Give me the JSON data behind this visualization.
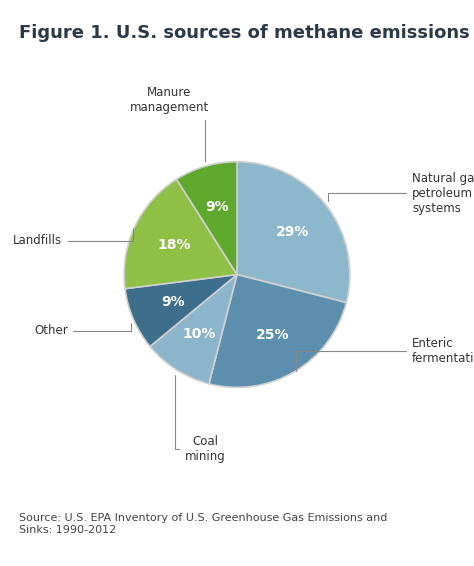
{
  "title": "Figure 1. U.S. sources of methane emissions",
  "source_text": "Source: U.S. EPA Inventory of U.S. Greenhouse Gas Emissions and\nSinks: 1990-2012",
  "slices": [
    {
      "label": "Natural gas and\npetroleum\nsystems",
      "value": 29,
      "color": "#8db8cc",
      "pct_label": "29%"
    },
    {
      "label": "Enteric\nfermentation",
      "value": 25,
      "color": "#5b8fad",
      "pct_label": "25%"
    },
    {
      "label": "Coal\nmining",
      "value": 10,
      "color": "#8ab5cb",
      "pct_label": "10%"
    },
    {
      "label": "Other",
      "value": 9,
      "color": "#3d6e8c",
      "pct_label": "9%"
    },
    {
      "label": "Landfills",
      "value": 18,
      "color": "#8dc044",
      "pct_label": "18%"
    },
    {
      "label": "Manure\nmanagement",
      "value": 9,
      "color": "#5ea82e",
      "pct_label": "9%"
    }
  ],
  "wedge_edge_color": "#d0d0d0",
  "wedge_linewidth": 1.2,
  "background_color": "#ffffff",
  "title_fontsize": 13,
  "title_color": "#2b3a4a",
  "label_fontsize": 8.5,
  "pct_fontsize": 10,
  "source_fontsize": 8.0,
  "connector_color": "#888888",
  "label_color": "#333333"
}
